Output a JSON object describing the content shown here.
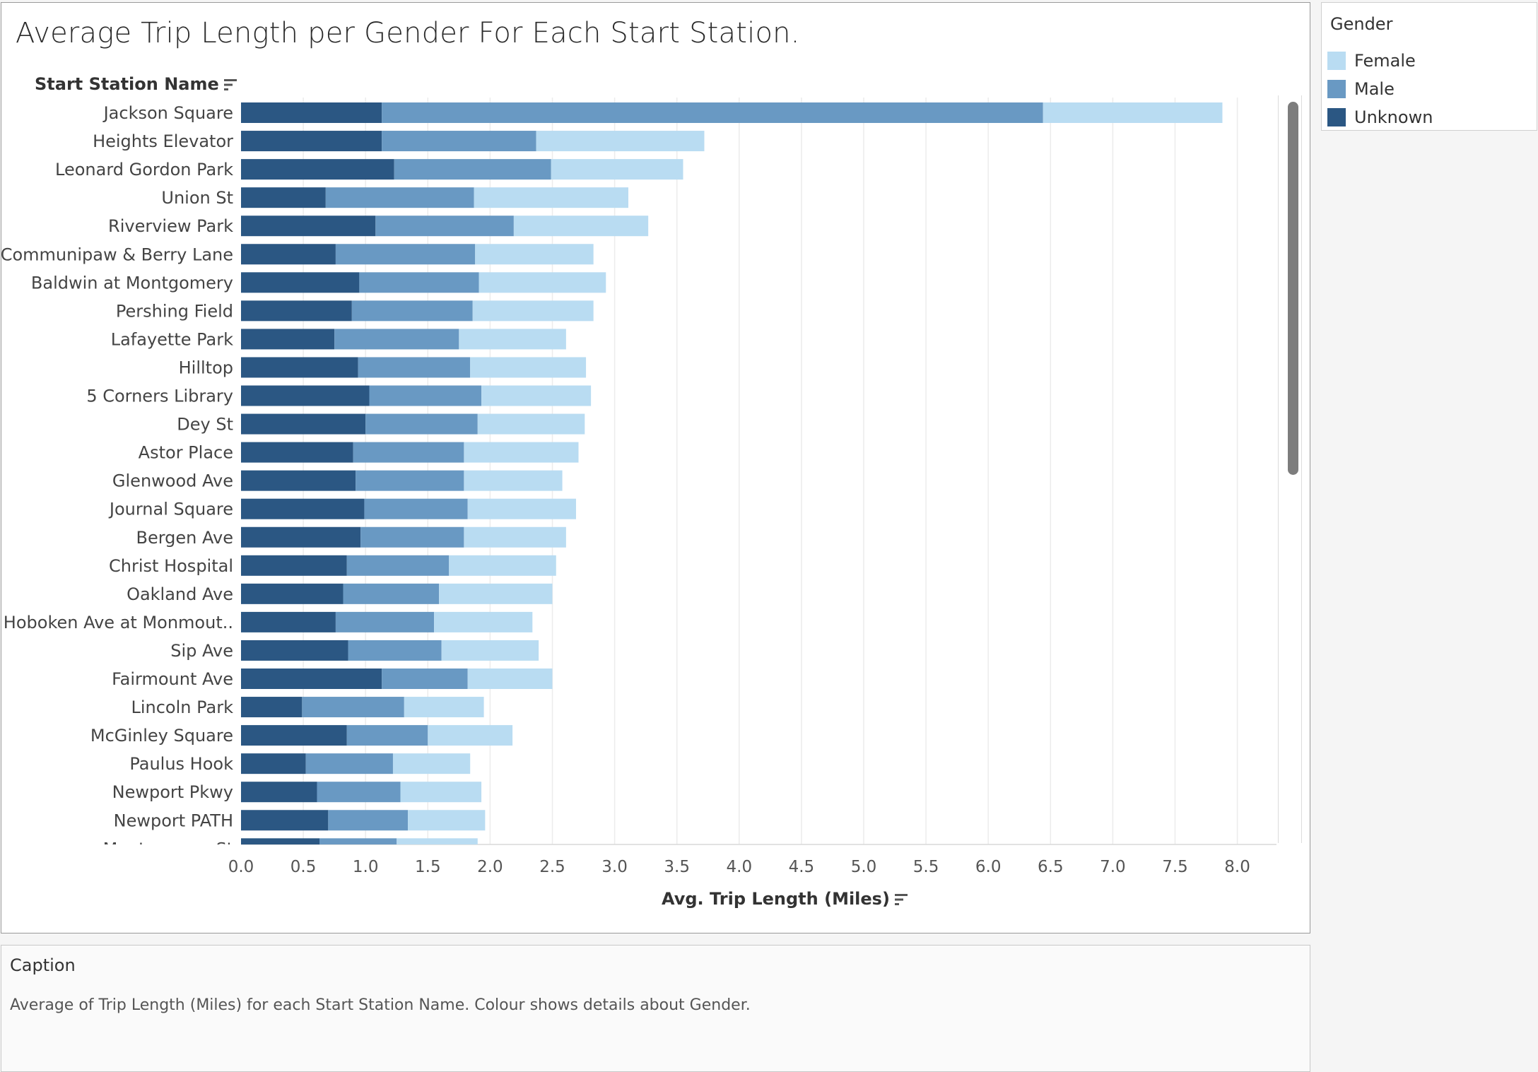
{
  "chart_data": {
    "type": "bar",
    "orientation": "horizontal",
    "stacked": true,
    "title": "Average Trip Length per Gender For Each Start Station.",
    "ylabel": "Start Station Name",
    "xlabel": "Avg. Trip Length (Miles)",
    "xlim": [
      0,
      8.3
    ],
    "xticks": [
      "0.0",
      "0.5",
      "1.0",
      "1.5",
      "2.0",
      "2.5",
      "3.0",
      "3.5",
      "4.0",
      "4.5",
      "5.0",
      "5.5",
      "6.0",
      "6.5",
      "7.0",
      "7.5",
      "8.0"
    ],
    "categories": [
      "Jackson Square",
      "Heights Elevator",
      "Leonard Gordon Park",
      "Union St",
      "Riverview Park",
      "Communipaw & Berry Lane",
      "Baldwin at Montgomery",
      "Pershing Field",
      "Lafayette Park",
      "Hilltop",
      "5 Corners Library",
      "Dey St",
      "Astor Place",
      "Glenwood Ave",
      "Journal Square",
      "Bergen Ave",
      "Christ Hospital",
      "Oakland Ave",
      "Hoboken Ave at Monmout..",
      "Sip Ave",
      "Fairmount Ave",
      "Lincoln Park",
      "McGinley Square",
      "Paulus Hook",
      "Newport Pkwy",
      "Newport PATH",
      "Montgomery St"
    ],
    "series": [
      {
        "name": "Unknown",
        "color": "#2b5783",
        "values": [
          1.13,
          1.13,
          1.23,
          0.68,
          1.08,
          0.76,
          0.95,
          0.89,
          0.75,
          0.94,
          1.03,
          1.0,
          0.9,
          0.92,
          0.99,
          0.96,
          0.85,
          0.82,
          0.76,
          0.86,
          1.13,
          0.49,
          0.85,
          0.52,
          0.61,
          0.7,
          0.63
        ]
      },
      {
        "name": "Male",
        "color": "#6999c3",
        "values": [
          5.31,
          1.24,
          1.26,
          1.19,
          1.11,
          1.12,
          0.96,
          0.97,
          1.0,
          0.9,
          0.9,
          0.9,
          0.89,
          0.87,
          0.83,
          0.83,
          0.82,
          0.77,
          0.79,
          0.75,
          0.69,
          0.82,
          0.65,
          0.7,
          0.67,
          0.64,
          0.62
        ]
      },
      {
        "name": "Female",
        "color": "#b9dcf2",
        "values": [
          1.44,
          1.35,
          1.06,
          1.24,
          1.08,
          0.95,
          1.02,
          0.97,
          0.86,
          0.93,
          0.88,
          0.86,
          0.92,
          0.79,
          0.87,
          0.82,
          0.86,
          0.91,
          0.79,
          0.78,
          0.68,
          0.64,
          0.68,
          0.62,
          0.65,
          0.62,
          0.65
        ]
      }
    ],
    "legend": {
      "title": "Gender",
      "position": "right",
      "entries": [
        "Female",
        "Male",
        "Unknown"
      ]
    },
    "grid": true
  },
  "legend": {
    "title": "Gender",
    "items": [
      {
        "label": "Female",
        "color": "#b9dcf2"
      },
      {
        "label": "Male",
        "color": "#6999c3"
      },
      {
        "label": "Unknown",
        "color": "#2b5783"
      }
    ]
  },
  "caption": {
    "title": "Caption",
    "text": "Average of Trip Length (Miles) for each Start Station Name. Colour shows details about Gender."
  }
}
